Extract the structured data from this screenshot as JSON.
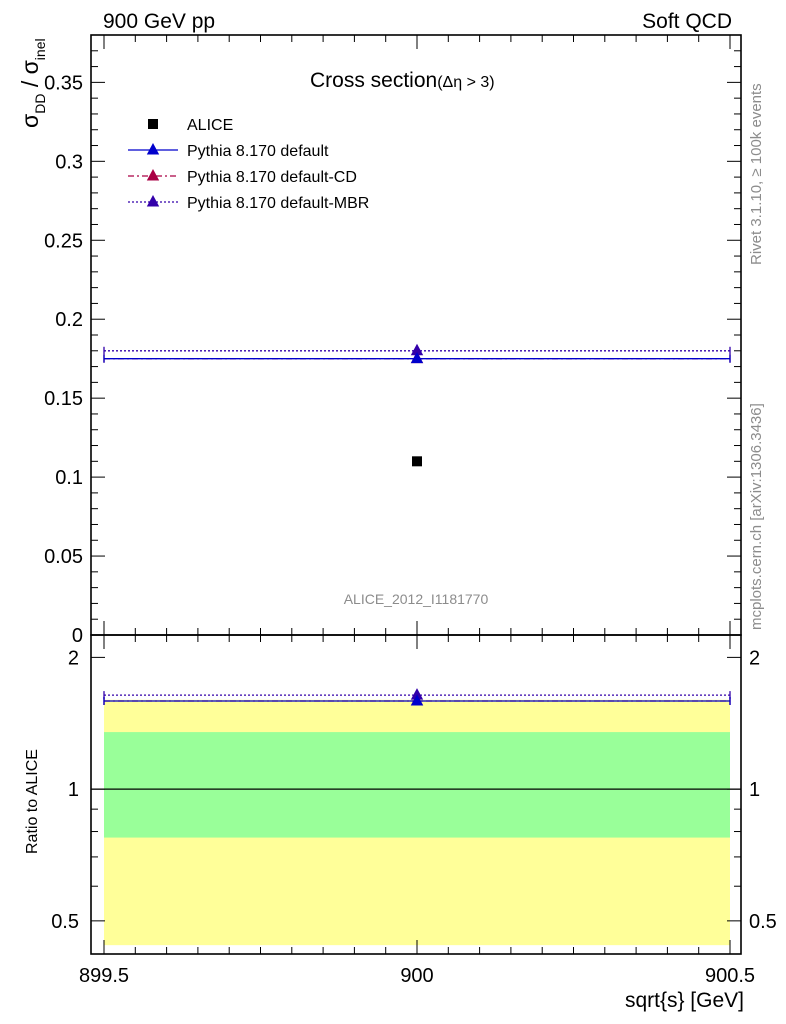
{
  "header": {
    "left": "900 GeV pp",
    "right": "Soft QCD"
  },
  "side_text": {
    "rivet": "Rivet 3.1.10, ≥ 100k events",
    "mcplots": "mcplots.cern.ch [arXiv:1306.3436]"
  },
  "watermark": "ALICE_2012_I1181770",
  "colors": {
    "alice": "#000000",
    "default": "#0000cc",
    "default_cd": "#aa0044",
    "default_mbr": "#3300aa",
    "band_inner": "#99ff99",
    "band_outer": "#ffff99"
  },
  "chart_data": [
    {
      "type": "scatter",
      "title_main": "Cross section",
      "title_sub": "(Δη > 3)",
      "ylabel_sigma": "σ",
      "ylabel_sub_dd": "DD",
      "ylabel_slash": " / ",
      "ylabel_sub_inel": "inel",
      "xlim": [
        899.5,
        900.5
      ],
      "ylim": [
        0,
        0.38
      ],
      "y_ticks": [
        0,
        0.05,
        0.1,
        0.15,
        0.2,
        0.25,
        0.3,
        0.35
      ],
      "y_tick_labels": [
        "0",
        "0.05",
        "0.1",
        "0.15",
        "0.2",
        "0.25",
        "0.3",
        "0.35"
      ],
      "legend_position": "top-left",
      "series": [
        {
          "name": "ALICE",
          "style": "data",
          "x": [
            900
          ],
          "y": [
            0.11
          ]
        },
        {
          "name": "Pythia 8.170 default",
          "style": "solid",
          "x": [
            900
          ],
          "y": [
            0.175
          ]
        },
        {
          "name": "Pythia 8.170 default-CD",
          "style": "dashdot",
          "x": [
            900
          ],
          "y": [
            0.175
          ]
        },
        {
          "name": "Pythia 8.170 default-MBR",
          "style": "dotted",
          "x": [
            900
          ],
          "y": [
            0.18
          ]
        }
      ]
    },
    {
      "type": "scatter",
      "ylabel": "Ratio to ALICE",
      "xlabel": "sqrt{s} [GeV]",
      "xlim": [
        899.5,
        900.5
      ],
      "x_ticks": [
        899.5,
        900,
        900.5
      ],
      "x_tick_labels": [
        "899.5",
        "900",
        "900.5"
      ],
      "ylim": [
        0.42,
        2.25
      ],
      "y_ticks": [
        0.5,
        1,
        2
      ],
      "y_tick_labels": [
        "0.5",
        "1",
        "2"
      ],
      "bands": {
        "inner": [
          0.775,
          1.35
        ],
        "outer": [
          0.44,
          1.6
        ]
      },
      "series": [
        {
          "name": "Pythia 8.170 default",
          "style": "solid",
          "x": [
            900
          ],
          "y": [
            1.59
          ]
        },
        {
          "name": "Pythia 8.170 default-CD",
          "style": "dashdot",
          "x": [
            900
          ],
          "y": [
            1.59
          ]
        },
        {
          "name": "Pythia 8.170 default-MBR",
          "style": "dotted",
          "x": [
            900
          ],
          "y": [
            1.64
          ]
        }
      ]
    }
  ]
}
